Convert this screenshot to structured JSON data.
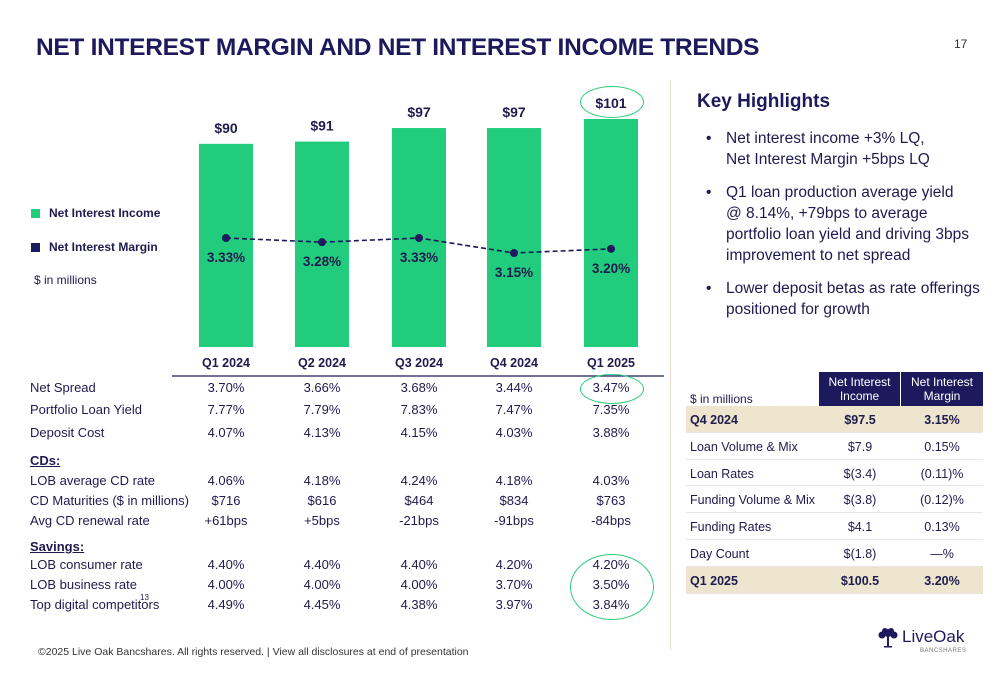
{
  "slide": {
    "title": "NET INTEREST MARGIN AND NET INTEREST INCOME TRENDS",
    "page_number": "17",
    "footer": "©2025 Live Oak Bancshares. All rights reserved.  |  View all disclosures at end of presentation",
    "logo": {
      "name": "LiveOak",
      "sub": "BANCSHARES",
      "icon": "oak-tree-icon"
    }
  },
  "colors": {
    "bar": "#22cc7d",
    "navy": "#1c1a5c",
    "highlight_row": "#ede5cd",
    "circle": "#2ecc7a"
  },
  "chart_data": {
    "type": "bar",
    "categories": [
      "Q1 2024",
      "Q2 2024",
      "Q3 2024",
      "Q4 2024",
      "Q1 2025"
    ],
    "series": [
      {
        "name": "Net Interest Income",
        "type": "bar",
        "values": [
          90,
          91,
          97,
          97,
          101
        ],
        "labels": [
          "$90",
          "$91",
          "$97",
          "$97",
          "$101"
        ]
      },
      {
        "name": "Net Interest Margin",
        "type": "line",
        "values": [
          3.33,
          3.28,
          3.33,
          3.15,
          3.2
        ],
        "labels": [
          "3.33%",
          "3.28%",
          "3.33%",
          "3.15%",
          "3.20%"
        ]
      }
    ],
    "units_note": "$ in millions",
    "legend": {
      "placement": "left",
      "items": [
        "Net Interest Income",
        "Net Interest Margin"
      ]
    }
  },
  "metrics_table": {
    "rows": [
      {
        "label": "Net Spread",
        "values": [
          "3.70%",
          "3.66%",
          "3.68%",
          "3.44%",
          "3.47%"
        ]
      },
      {
        "label": "Portfolio Loan Yield",
        "values": [
          "7.77%",
          "7.79%",
          "7.83%",
          "7.47%",
          "7.35%"
        ]
      },
      {
        "label": "Deposit Cost",
        "values": [
          "4.07%",
          "4.13%",
          "4.15%",
          "4.03%",
          "3.88%"
        ]
      }
    ],
    "cds_header": "CDs:",
    "cds_rows": [
      {
        "label": "LOB average CD rate",
        "values": [
          "4.06%",
          "4.18%",
          "4.24%",
          "4.18%",
          "4.03%"
        ]
      },
      {
        "label": "CD Maturities ($ in millions)",
        "values": [
          "$716",
          "$616",
          "$464",
          "$834",
          "$763"
        ]
      },
      {
        "label": "Avg CD renewal rate",
        "values": [
          "+61bps",
          "+5bps",
          "-21bps",
          "-91bps",
          "-84bps"
        ]
      }
    ],
    "savings_header": "Savings:",
    "savings_rows": [
      {
        "label": "LOB consumer rate",
        "values": [
          "4.40%",
          "4.40%",
          "4.40%",
          "4.20%",
          "4.20%"
        ]
      },
      {
        "label": "LOB business rate",
        "values": [
          "4.00%",
          "4.00%",
          "4.00%",
          "3.70%",
          "3.50%"
        ]
      },
      {
        "label": "Top digital competitors",
        "sup": "13",
        "values": [
          "4.49%",
          "4.45%",
          "4.38%",
          "3.97%",
          "3.84%"
        ]
      }
    ]
  },
  "highlights": {
    "title": "Key Highlights",
    "bullets": [
      {
        "line1": "Net interest income +3% LQ,",
        "line2": "Net Interest Margin +5bps LQ"
      },
      {
        "line1": "Q1 loan production average yield",
        "line2": "@ 8.14%, +79bps to average",
        "line3": "portfolio loan yield and driving 3bps",
        "line4": "improvement to net spread"
      },
      {
        "line1": "Lower deposit betas as rate offerings",
        "line2": "positioned for growth"
      }
    ]
  },
  "bridge_table": {
    "units": "$ in millions",
    "col1": "Net Interest Income",
    "col2": "Net Interest Margin",
    "rows": [
      {
        "label": "Q4 2024",
        "v1": "$97.5",
        "v2": "3.15%",
        "highlight": true
      },
      {
        "label": "Loan Volume & Mix",
        "v1": "$7.9",
        "v2": "0.15%"
      },
      {
        "label": "Loan Rates",
        "v1": "$(3.4)",
        "v2": "(0.11)%"
      },
      {
        "label": "Funding Volume & Mix",
        "v1": "$(3.8)",
        "v2": "(0.12)%"
      },
      {
        "label": "Funding Rates",
        "v1": "$4.1",
        "v2": "0.13%"
      },
      {
        "label": "Day Count",
        "v1": "$(1.8)",
        "v2": "—%"
      },
      {
        "label": "Q1 2025",
        "v1": "$100.5",
        "v2": "3.20%",
        "highlight": true
      }
    ]
  }
}
